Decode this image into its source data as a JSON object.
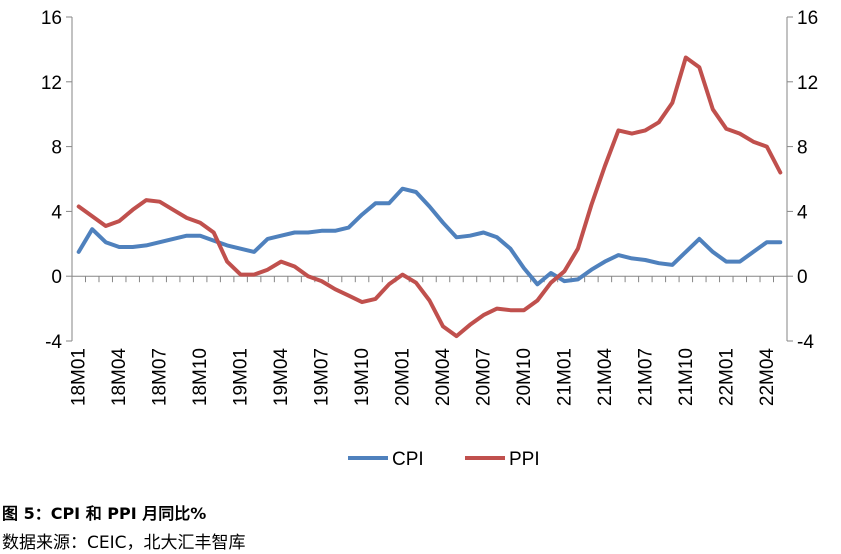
{
  "figure": {
    "title": "图 5：CPI 和 PPI 月同比%",
    "source": "数据来源：CEIC，北大汇丰智库"
  },
  "chart_data": {
    "type": "line",
    "x": [
      "18M01",
      "18M02",
      "18M03",
      "18M04",
      "18M05",
      "18M06",
      "18M07",
      "18M08",
      "18M09",
      "18M10",
      "18M11",
      "18M12",
      "19M01",
      "19M02",
      "19M03",
      "19M04",
      "19M05",
      "19M06",
      "19M07",
      "19M08",
      "19M09",
      "19M10",
      "19M11",
      "19M12",
      "20M01",
      "20M02",
      "20M03",
      "20M04",
      "20M05",
      "20M06",
      "20M07",
      "20M08",
      "20M09",
      "20M10",
      "20M11",
      "20M12",
      "21M01",
      "21M02",
      "21M03",
      "21M04",
      "21M05",
      "21M06",
      "21M07",
      "21M08",
      "21M09",
      "21M10",
      "21M11",
      "21M12",
      "22M01",
      "22M02",
      "22M03",
      "22M04",
      "22M05"
    ],
    "x_tick_labels": [
      "18M01",
      "18M04",
      "18M07",
      "18M10",
      "19M01",
      "19M04",
      "19M07",
      "19M10",
      "20M01",
      "20M04",
      "20M07",
      "20M10",
      "21M01",
      "21M04",
      "21M07",
      "21M10",
      "22M01",
      "22M04"
    ],
    "series": [
      {
        "name": "CPI",
        "color": "#4F81BD",
        "values": [
          1.5,
          2.9,
          2.1,
          1.8,
          1.8,
          1.9,
          2.1,
          2.3,
          2.5,
          2.5,
          2.2,
          1.9,
          1.7,
          1.5,
          2.3,
          2.5,
          2.7,
          2.7,
          2.8,
          2.8,
          3.0,
          3.8,
          4.5,
          4.5,
          5.4,
          5.2,
          4.3,
          3.3,
          2.4,
          2.5,
          2.7,
          2.4,
          1.7,
          0.5,
          -0.5,
          0.2,
          -0.3,
          -0.2,
          0.4,
          0.9,
          1.3,
          1.1,
          1.0,
          0.8,
          0.7,
          1.5,
          2.3,
          1.5,
          0.9,
          0.9,
          1.5,
          2.1,
          2.1
        ]
      },
      {
        "name": "PPI",
        "color": "#C0504D",
        "values": [
          4.3,
          3.7,
          3.1,
          3.4,
          4.1,
          4.7,
          4.6,
          4.1,
          3.6,
          3.3,
          2.7,
          0.9,
          0.1,
          0.1,
          0.4,
          0.9,
          0.6,
          0.0,
          -0.3,
          -0.8,
          -1.2,
          -1.6,
          -1.4,
          -0.5,
          0.1,
          -0.4,
          -1.5,
          -3.1,
          -3.7,
          -3.0,
          -2.4,
          -2.0,
          -2.1,
          -2.1,
          -1.5,
          -0.4,
          0.3,
          1.7,
          4.4,
          6.8,
          9.0,
          8.8,
          9.0,
          9.5,
          10.7,
          13.5,
          12.9,
          10.3,
          9.1,
          8.8,
          8.3,
          8.0,
          6.4
        ]
      }
    ],
    "y_left": {
      "min": -4,
      "max": 16,
      "ticks": [
        "-4",
        "0",
        "4",
        "8",
        "12",
        "16"
      ]
    },
    "y_right": {
      "min": -4,
      "max": 16,
      "ticks": [
        "-4",
        "0",
        "4",
        "8",
        "12",
        "16"
      ]
    },
    "legend_position": "bottom",
    "grid": false
  }
}
